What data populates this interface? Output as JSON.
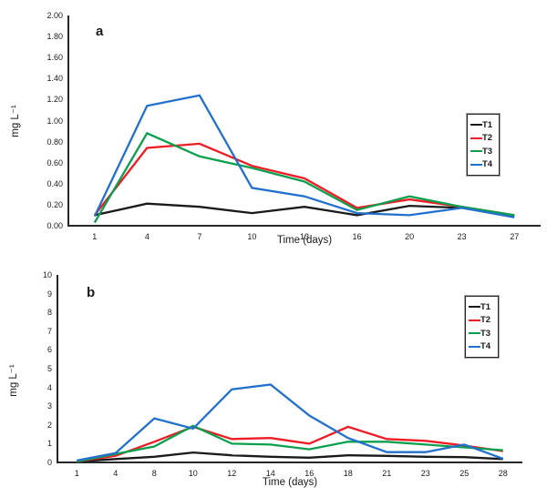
{
  "figure_title": "",
  "axis_color": "#262626",
  "chart_data": [
    {
      "type": "line",
      "panel_label": "a",
      "title": "",
      "xlabel": "Time (days)",
      "ylabel": "mg L⁻¹",
      "categories": [
        "1",
        "4",
        "7",
        "10",
        "13",
        "16",
        "20",
        "23",
        "27"
      ],
      "ylim": [
        0,
        2.0
      ],
      "ytick_step": 0.2,
      "ytick_decimals": 2,
      "grid": false,
      "legend_position": "right-middle",
      "series": [
        {
          "name": "T1",
          "color": "#1a1a1a",
          "values": [
            0.1,
            0.21,
            0.18,
            0.12,
            0.18,
            0.1,
            0.19,
            0.17,
            0.09
          ]
        },
        {
          "name": "T2",
          "color": "#ee1c25",
          "values": [
            0.1,
            0.74,
            0.78,
            0.57,
            0.45,
            0.17,
            0.25,
            0.18,
            0.1
          ]
        },
        {
          "name": "T3",
          "color": "#0ca04e",
          "values": [
            0.03,
            0.88,
            0.66,
            0.55,
            0.42,
            0.15,
            0.28,
            0.18,
            0.1
          ]
        },
        {
          "name": "T4",
          "color": "#2170cd",
          "values": [
            0.09,
            1.14,
            1.24,
            0.36,
            0.28,
            0.12,
            0.1,
            0.17,
            0.08
          ]
        }
      ]
    },
    {
      "type": "line",
      "panel_label": "b",
      "title": "",
      "xlabel": "Time (days)",
      "ylabel": "mg L⁻¹",
      "categories": [
        "1",
        "4",
        "8",
        "10",
        "12",
        "14",
        "16",
        "18",
        "21",
        "23",
        "25",
        "28"
      ],
      "ylim": [
        0,
        10
      ],
      "ytick_step": 1,
      "ytick_decimals": 0,
      "grid": false,
      "legend_position": "right-upper",
      "series": [
        {
          "name": "T1",
          "color": "#1a1a1a",
          "values": [
            0.05,
            0.18,
            0.3,
            0.53,
            0.38,
            0.3,
            0.25,
            0.38,
            0.35,
            0.3,
            0.28,
            0.18
          ]
        },
        {
          "name": "T2",
          "color": "#ee1c25",
          "values": [
            0.05,
            0.35,
            1.1,
            1.9,
            1.25,
            1.3,
            1.0,
            1.9,
            1.25,
            1.15,
            0.9,
            0.6
          ]
        },
        {
          "name": "T3",
          "color": "#0ca04e",
          "values": [
            0.05,
            0.45,
            0.85,
            1.95,
            1.0,
            0.95,
            0.7,
            1.1,
            1.1,
            0.95,
            0.8,
            0.65
          ]
        },
        {
          "name": "T4",
          "color": "#2170cd",
          "values": [
            0.1,
            0.5,
            2.35,
            1.8,
            3.9,
            4.15,
            2.5,
            1.3,
            0.55,
            0.55,
            0.95,
            0.2
          ]
        }
      ]
    }
  ]
}
